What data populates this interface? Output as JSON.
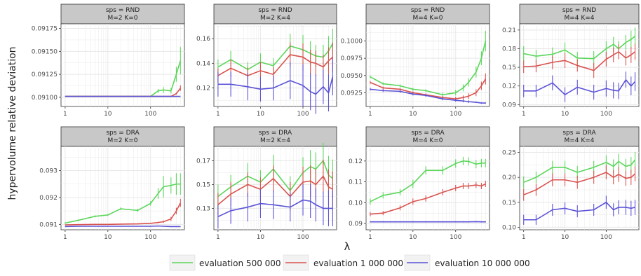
{
  "figure": {
    "ylabel": "hypervolume relative deviation",
    "xlabel": "λ",
    "x_ticks": [
      1,
      10,
      100
    ],
    "legend": [
      {
        "label": "evaluation 500 000",
        "color": "#5cd65c"
      },
      {
        "label": "evaluation 1 000 000",
        "color": "#d9534f"
      },
      {
        "label": "evaluation 10 000 000",
        "color": "#5b52d6"
      }
    ],
    "panel_bg": "#ffffff",
    "strip_bg": "#c8c8c8",
    "grid_color": "#e8e8e8"
  },
  "chart_data": [
    {
      "type": "line",
      "strip": [
        "sps = RND",
        "M=2  K=0"
      ],
      "x": [
        1,
        2,
        5,
        10,
        20,
        50,
        100,
        150,
        200,
        300,
        400,
        500
      ],
      "ylim": [
        0.0909,
        0.0918
      ],
      "yticks": [
        0.091,
        0.09125,
        0.0915,
        0.09175
      ],
      "ytick_labels": [
        "0.09100",
        "0.09125",
        "0.09150",
        "0.09175"
      ],
      "series": [
        {
          "name": "evaluation 500 000",
          "values": [
            0.09101,
            0.09101,
            0.09101,
            0.09101,
            0.09101,
            0.09101,
            0.09101,
            0.09107,
            0.09108,
            0.09107,
            0.09125,
            0.0914
          ],
          "err": [
            1e-06,
            1e-06,
            1e-06,
            1e-06,
            1e-06,
            1e-06,
            4e-06,
            2e-05,
            3e-05,
            3e-05,
            8e-05,
            0.00015
          ]
        },
        {
          "name": "evaluation 1 000 000",
          "values": [
            0.09101,
            0.09101,
            0.09101,
            0.09101,
            0.09101,
            0.09101,
            0.09101,
            0.09101,
            0.09101,
            0.09101,
            0.09104,
            0.0911
          ],
          "err": [
            1e-06,
            1e-06,
            1e-06,
            1e-06,
            1e-06,
            1e-06,
            1e-06,
            1e-06,
            2e-06,
            3e-06,
            1e-05,
            3e-05
          ]
        },
        {
          "name": "evaluation 10 000 000",
          "values": [
            0.09101,
            0.09101,
            0.09101,
            0.09101,
            0.09101,
            0.09101,
            0.09101,
            0.09101,
            0.09101,
            0.09101,
            0.09101,
            0.09101
          ],
          "err": [
            5e-07,
            5e-07,
            5e-07,
            5e-07,
            5e-07,
            5e-07,
            5e-07,
            5e-07,
            5e-07,
            5e-07,
            5e-07,
            5e-07
          ]
        }
      ]
    },
    {
      "type": "line",
      "strip": [
        "sps = RND",
        "M=2  K=4"
      ],
      "x": [
        1,
        2,
        5,
        10,
        20,
        50,
        100,
        150,
        200,
        300,
        400,
        500
      ],
      "ylim": [
        0.105,
        0.172
      ],
      "yticks": [
        0.12,
        0.14,
        0.16
      ],
      "ytick_labels": [
        "0.12",
        "0.14",
        "0.16"
      ],
      "series": [
        {
          "name": "evaluation 500 000",
          "values": [
            0.137,
            0.143,
            0.135,
            0.141,
            0.138,
            0.154,
            0.151,
            0.148,
            0.146,
            0.145,
            0.15,
            0.156
          ],
          "err": [
            0.006,
            0.007,
            0.006,
            0.007,
            0.006,
            0.01,
            0.012,
            0.01,
            0.009,
            0.01,
            0.012,
            0.012
          ]
        },
        {
          "name": "evaluation 1 000 000",
          "values": [
            0.13,
            0.136,
            0.13,
            0.134,
            0.131,
            0.147,
            0.145,
            0.141,
            0.14,
            0.137,
            0.142,
            0.145
          ],
          "err": [
            0.006,
            0.007,
            0.007,
            0.007,
            0.006,
            0.01,
            0.011,
            0.01,
            0.01,
            0.01,
            0.011,
            0.012
          ]
        },
        {
          "name": "evaluation 10 000 000",
          "values": [
            0.123,
            0.123,
            0.121,
            0.119,
            0.12,
            0.126,
            0.122,
            0.117,
            0.115,
            0.121,
            0.116,
            0.129
          ],
          "err": [
            0.01,
            0.01,
            0.011,
            0.01,
            0.01,
            0.015,
            0.017,
            0.015,
            0.016,
            0.014,
            0.015,
            0.015
          ]
        }
      ]
    },
    {
      "type": "line",
      "strip": [
        "sps = RND",
        "M=4  K=0"
      ],
      "x": [
        1,
        2,
        5,
        10,
        20,
        50,
        100,
        150,
        200,
        300,
        400,
        500
      ],
      "ylim": [
        0.0905,
        0.1025
      ],
      "yticks": [
        0.0925,
        0.095,
        0.0975,
        0.1
      ],
      "ytick_labels": [
        "0.0925",
        "0.0950",
        "0.0975",
        "0.1000"
      ],
      "series": [
        {
          "name": "evaluation 500 000",
          "values": [
            0.0948,
            0.0938,
            0.0935,
            0.093,
            0.0928,
            0.0922,
            0.0925,
            0.0932,
            0.094,
            0.0955,
            0.0975,
            0.1
          ],
          "err": [
            0.0002,
            0.0002,
            0.0002,
            0.0002,
            0.0002,
            0.0003,
            0.0004,
            0.0005,
            0.0006,
            0.0008,
            0.001,
            0.0015
          ]
        },
        {
          "name": "evaluation 1 000 000",
          "values": [
            0.094,
            0.0932,
            0.093,
            0.0925,
            0.0922,
            0.0918,
            0.0916,
            0.0918,
            0.092,
            0.0925,
            0.0935,
            0.0945
          ],
          "err": [
            0.0002,
            0.0002,
            0.0002,
            0.0002,
            0.0002,
            0.0002,
            0.0003,
            0.0003,
            0.0004,
            0.0005,
            0.0006,
            0.0008
          ]
        },
        {
          "name": "evaluation 10 000 000",
          "values": [
            0.093,
            0.0928,
            0.0927,
            0.0923,
            0.0921,
            0.0916,
            0.0914,
            0.0913,
            0.0912,
            0.0911,
            0.091,
            0.091
          ],
          "err": [
            0.0002,
            0.0002,
            0.0002,
            0.0002,
            0.0002,
            0.0002,
            0.0002,
            0.0002,
            0.0002,
            0.0001,
            0.0001,
            0.0001
          ]
        }
      ]
    },
    {
      "type": "line",
      "strip": [
        "sps = RND",
        "M=4  K=4"
      ],
      "x": [
        1,
        2,
        5,
        10,
        20,
        50,
        100,
        150,
        200,
        300,
        400,
        500
      ],
      "ylim": [
        0.087,
        0.22
      ],
      "yticks": [
        0.09,
        0.12,
        0.15,
        0.18,
        0.21
      ],
      "ytick_labels": [
        "0.09",
        "0.12",
        "0.15",
        "0.18",
        "0.21"
      ],
      "series": [
        {
          "name": "evaluation 500 000",
          "values": [
            0.172,
            0.168,
            0.171,
            0.178,
            0.165,
            0.164,
            0.18,
            0.187,
            0.18,
            0.19,
            0.195,
            0.2
          ],
          "err": [
            0.012,
            0.01,
            0.011,
            0.012,
            0.01,
            0.012,
            0.012,
            0.012,
            0.012,
            0.012,
            0.014,
            0.014
          ]
        },
        {
          "name": "evaluation 1 000 000",
          "values": [
            0.151,
            0.152,
            0.158,
            0.161,
            0.153,
            0.145,
            0.163,
            0.17,
            0.175,
            0.165,
            0.17,
            0.175
          ],
          "err": [
            0.01,
            0.01,
            0.011,
            0.012,
            0.01,
            0.012,
            0.012,
            0.012,
            0.012,
            0.012,
            0.013,
            0.013
          ]
        },
        {
          "name": "evaluation 10 000 000",
          "values": [
            0.112,
            0.112,
            0.125,
            0.106,
            0.118,
            0.11,
            0.116,
            0.113,
            0.112,
            0.13,
            0.12,
            0.127
          ],
          "err": [
            0.01,
            0.01,
            0.012,
            0.012,
            0.012,
            0.012,
            0.013,
            0.013,
            0.013,
            0.013,
            0.015,
            0.015
          ]
        }
      ]
    },
    {
      "type": "line",
      "strip": [
        "sps = DRA",
        "M=2  K=0"
      ],
      "x": [
        1,
        2,
        5,
        10,
        20,
        50,
        100,
        150,
        200,
        300,
        400,
        500
      ],
      "ylim": [
        0.0908,
        0.0939
      ],
      "yticks": [
        0.091,
        0.092,
        0.093
      ],
      "ytick_labels": [
        "0.091",
        "0.092",
        "0.093"
      ],
      "series": [
        {
          "name": "evaluation 500 000",
          "values": [
            0.09105,
            0.09115,
            0.0913,
            0.09135,
            0.09158,
            0.09152,
            0.09178,
            0.09215,
            0.0924,
            0.09245,
            0.0925,
            0.0925
          ],
          "err": [
            3e-05,
            3e-05,
            4e-05,
            4e-05,
            5e-05,
            6e-05,
            8e-05,
            0.0002,
            0.0004,
            0.0003,
            0.0004,
            0.0004
          ]
        },
        {
          "name": "evaluation 1 000 000",
          "values": [
            0.09098,
            0.09099,
            0.091,
            0.091,
            0.09101,
            0.09102,
            0.09104,
            0.09107,
            0.0911,
            0.0912,
            0.0915,
            0.0918
          ],
          "err": [
            8e-06,
            8e-06,
            1e-05,
            1e-05,
            1e-05,
            1e-05,
            2e-05,
            3e-05,
            4e-05,
            8e-05,
            0.00012,
            0.00015
          ]
        },
        {
          "name": "evaluation 10 000 000",
          "values": [
            0.09092,
            0.09093,
            0.09093,
            0.09093,
            0.09093,
            0.09093,
            0.09093,
            0.09094,
            0.09093,
            0.09092,
            0.09092,
            0.09092
          ],
          "err": [
            5e-06,
            5e-06,
            5e-06,
            5e-06,
            5e-06,
            5e-06,
            5e-06,
            5e-06,
            5e-06,
            5e-06,
            5e-06,
            5e-06
          ]
        }
      ]
    },
    {
      "type": "line",
      "strip": [
        "sps = DRA",
        "M=2  K=4"
      ],
      "x": [
        1,
        2,
        5,
        10,
        20,
        50,
        100,
        150,
        200,
        300,
        400,
        500
      ],
      "ylim": [
        0.112,
        0.182
      ],
      "yticks": [
        0.13,
        0.15,
        0.17
      ],
      "ytick_labels": [
        "0.13",
        "0.15",
        "0.17"
      ],
      "series": [
        {
          "name": "evaluation 500 000",
          "values": [
            0.14,
            0.148,
            0.157,
            0.152,
            0.163,
            0.145,
            0.16,
            0.165,
            0.163,
            0.17,
            0.158,
            0.155
          ],
          "err": [
            0.01,
            0.01,
            0.011,
            0.01,
            0.012,
            0.012,
            0.013,
            0.014,
            0.014,
            0.015,
            0.016,
            0.016
          ]
        },
        {
          "name": "evaluation 1 000 000",
          "values": [
            0.133,
            0.142,
            0.15,
            0.146,
            0.155,
            0.14,
            0.152,
            0.153,
            0.15,
            0.157,
            0.148,
            0.146
          ],
          "err": [
            0.01,
            0.01,
            0.01,
            0.01,
            0.011,
            0.012,
            0.013,
            0.013,
            0.013,
            0.014,
            0.015,
            0.015
          ]
        },
        {
          "name": "evaluation 10 000 000",
          "values": [
            0.123,
            0.128,
            0.131,
            0.134,
            0.133,
            0.131,
            0.137,
            0.136,
            0.133,
            0.13,
            0.13,
            0.13
          ],
          "err": [
            0.01,
            0.011,
            0.012,
            0.012,
            0.012,
            0.012,
            0.013,
            0.014,
            0.014,
            0.014,
            0.015,
            0.015
          ]
        }
      ]
    },
    {
      "type": "line",
      "strip": [
        "sps = DRA",
        "M=4  K=0"
      ],
      "x": [
        1,
        2,
        5,
        10,
        20,
        50,
        100,
        150,
        200,
        300,
        400,
        500
      ],
      "ylim": [
        0.087,
        0.127
      ],
      "yticks": [
        0.09,
        0.1,
        0.11,
        0.12
      ],
      "ytick_labels": [
        "0.09",
        "0.10",
        "0.11",
        "0.12"
      ],
      "series": [
        {
          "name": "evaluation 500 000",
          "values": [
            0.1005,
            0.1035,
            0.105,
            0.109,
            0.1155,
            0.1155,
            0.1188,
            0.12,
            0.1198,
            0.1185,
            0.119,
            0.119
          ],
          "err": [
            0.0015,
            0.0015,
            0.0015,
            0.002,
            0.002,
            0.002,
            0.002,
            0.002,
            0.002,
            0.002,
            0.002,
            0.002
          ]
        },
        {
          "name": "evaluation 1 000 000",
          "values": [
            0.0945,
            0.095,
            0.0975,
            0.1005,
            0.102,
            0.105,
            0.107,
            0.108,
            0.108,
            0.1085,
            0.108,
            0.109
          ],
          "err": [
            0.001,
            0.001,
            0.0012,
            0.0015,
            0.0015,
            0.0015,
            0.0015,
            0.0015,
            0.0015,
            0.0015,
            0.0015,
            0.0015
          ]
        },
        {
          "name": "evaluation 10 000 000",
          "values": [
            0.0908,
            0.0908,
            0.0908,
            0.0908,
            0.0908,
            0.0908,
            0.0908,
            0.0908,
            0.0908,
            0.0909,
            0.0908,
            0.0908
          ],
          "err": [
            0.0003,
            0.0003,
            0.0003,
            0.0003,
            0.0003,
            0.0003,
            0.0003,
            0.0003,
            0.0003,
            0.0003,
            0.0003,
            0.0003
          ]
        }
      ]
    },
    {
      "type": "line",
      "strip": [
        "sps = DRA",
        "M=4  K=4"
      ],
      "x": [
        1,
        2,
        5,
        10,
        20,
        50,
        100,
        150,
        200,
        300,
        400,
        500
      ],
      "ylim": [
        0.095,
        0.262
      ],
      "yticks": [
        0.1,
        0.15,
        0.2,
        0.25
      ],
      "ytick_labels": [
        "0.10",
        "0.15",
        "0.20",
        "0.25"
      ],
      "series": [
        {
          "name": "evaluation 500 000",
          "values": [
            0.19,
            0.2,
            0.22,
            0.22,
            0.21,
            0.22,
            0.23,
            0.222,
            0.232,
            0.222,
            0.225,
            0.235
          ],
          "err": [
            0.012,
            0.012,
            0.013,
            0.013,
            0.013,
            0.013,
            0.014,
            0.014,
            0.015,
            0.015,
            0.016,
            0.016
          ]
        },
        {
          "name": "evaluation 1 000 000",
          "values": [
            0.165,
            0.175,
            0.195,
            0.195,
            0.19,
            0.2,
            0.21,
            0.2,
            0.206,
            0.198,
            0.2,
            0.207
          ],
          "err": [
            0.012,
            0.012,
            0.013,
            0.013,
            0.013,
            0.013,
            0.014,
            0.014,
            0.015,
            0.015,
            0.015,
            0.015
          ]
        },
        {
          "name": "evaluation 10 000 000",
          "values": [
            0.115,
            0.115,
            0.135,
            0.138,
            0.132,
            0.135,
            0.15,
            0.135,
            0.14,
            0.14,
            0.138,
            0.14
          ],
          "err": [
            0.01,
            0.01,
            0.012,
            0.012,
            0.012,
            0.012,
            0.013,
            0.013,
            0.014,
            0.015,
            0.015,
            0.015
          ]
        }
      ]
    }
  ]
}
